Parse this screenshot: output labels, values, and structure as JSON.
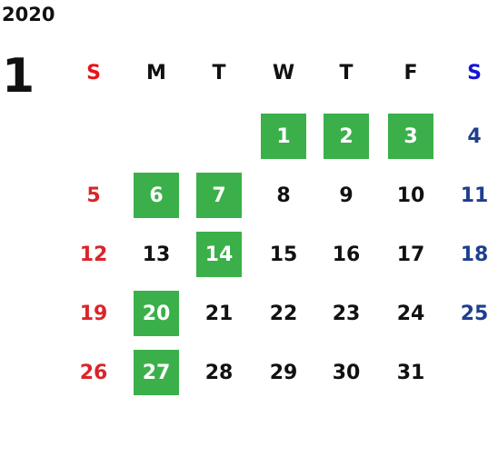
{
  "year": "2020",
  "month": "1",
  "weekdays": [
    "S",
    "M",
    "T",
    "W",
    "T",
    "F",
    "S"
  ],
  "weeks": [
    [
      null,
      null,
      null,
      1,
      2,
      3,
      4
    ],
    [
      5,
      6,
      7,
      8,
      9,
      10,
      11
    ],
    [
      12,
      13,
      14,
      15,
      16,
      17,
      18
    ],
    [
      19,
      20,
      21,
      22,
      23,
      24,
      25
    ],
    [
      26,
      27,
      28,
      29,
      30,
      31,
      null
    ]
  ],
  "marked": [
    [
      false,
      false,
      false,
      true,
      true,
      true,
      false
    ],
    [
      false,
      true,
      true,
      false,
      false,
      false,
      false
    ],
    [
      false,
      false,
      true,
      false,
      false,
      false,
      false
    ],
    [
      false,
      true,
      false,
      false,
      false,
      false,
      false
    ],
    [
      false,
      true,
      false,
      false,
      false,
      false,
      false
    ]
  ],
  "mark_color": "#3bb04a"
}
